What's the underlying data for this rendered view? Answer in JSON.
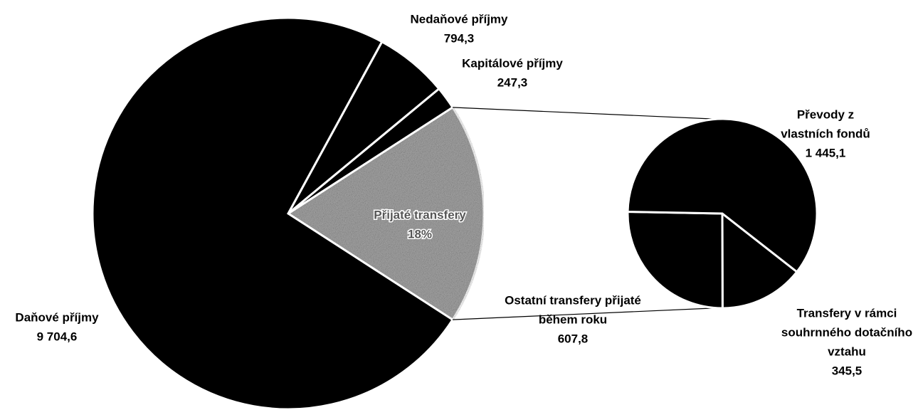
{
  "chart_data": {
    "type": "pie-of-pie",
    "pie": {
      "categories": [
        [
          "Daňové příjmy"
        ],
        [
          "Nedaňové příjmy"
        ],
        [
          "Kapitálové příjmy"
        ]
      ],
      "values": [
        9704.6,
        794.3,
        247.3
      ],
      "value_labels": [
        "9 704,6",
        "794,3",
        "247,3"
      ],
      "color": "#000000"
    },
    "group": {
      "name": "Přijaté transfery",
      "percent": 18,
      "percent_label": "18%",
      "color": "#a8a8a8"
    },
    "secondary": {
      "categories": [
        [
          "Převody z",
          "vlastních fondů"
        ],
        [
          "Ostatní transfery přijaté",
          "během roku"
        ],
        [
          "Transfery v rámci",
          "souhrnného dotačního",
          "vztahu"
        ]
      ],
      "values": [
        1445.1,
        607.8,
        345.5
      ],
      "value_labels": [
        "1 445,1",
        "607,8",
        "345,5"
      ],
      "color": "#000000"
    }
  }
}
